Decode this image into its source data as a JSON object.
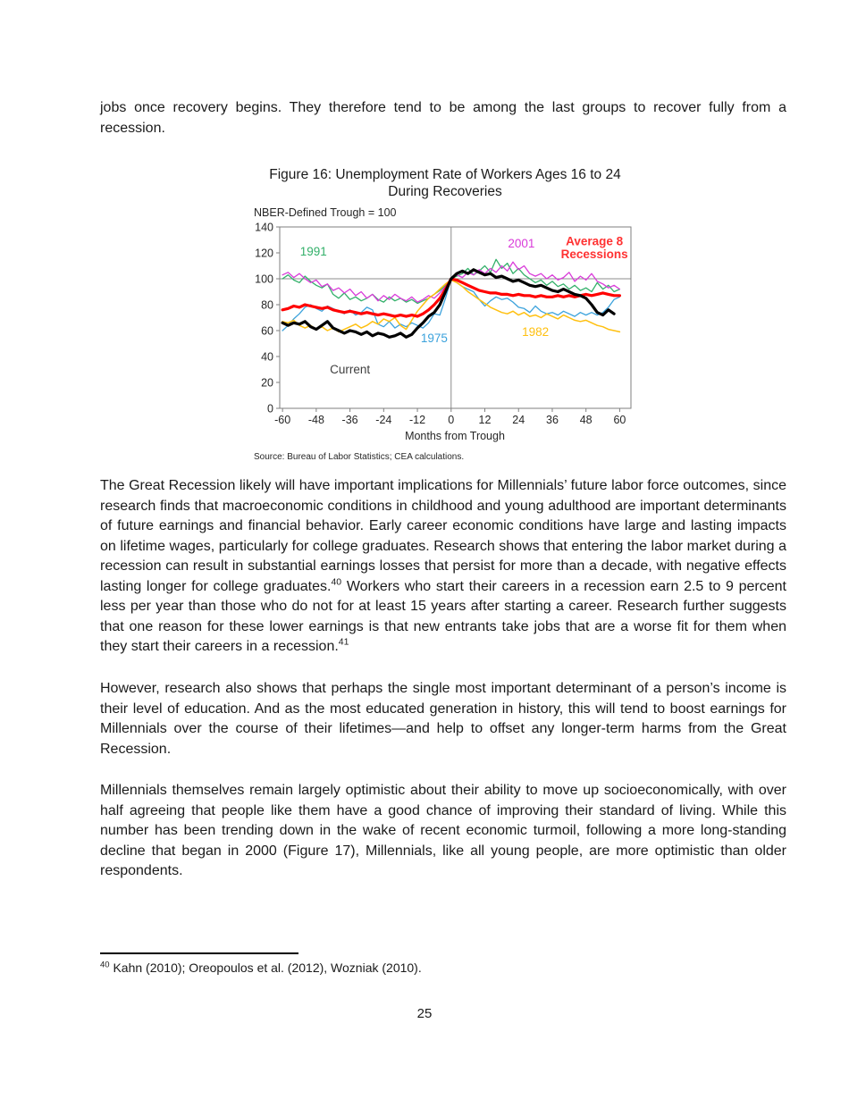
{
  "page": {
    "intro_text": "jobs once recovery begins. They therefore tend to be among the last groups to recover fully from a recession.",
    "paragraphs": [
      {
        "runs": [
          {
            "t": "The Great Recession likely will have important implications for Millennials’ future labor force outcomes, since research finds that macroeconomic conditions in childhood and young adulthood are important determinants of future earnings and financial behavior. Early career economic conditions have large and lasting impacts on lifetime wages, particularly for college graduates. Research shows that entering the labor market during a recession can result in substantial earnings losses that persist for more than a decade, with negative effects lasting longer for college graduates."
          },
          {
            "sup": "40"
          },
          {
            "t": " Workers who start their careers in a recession earn 2.5 to 9 percent less per year than those who do not for at least 15 years after starting a career. Research further suggests that one reason for these lower earnings is that new entrants take jobs that are a worse fit for them when they start their careers in a recession."
          },
          {
            "sup": "41"
          }
        ]
      },
      {
        "runs": [
          {
            "t": "However, research also shows that perhaps the single most important determinant of a person’s income is their level of education. And as the most educated generation in history, this will tend to boost earnings for Millennials over the course of their lifetimes—and help to offset any longer-term harms from the Great Recession."
          }
        ]
      },
      {
        "runs": [
          {
            "t": "Millennials themselves remain largely optimistic about their ability to move up socioeconomically, with over half agreeing that people like them have a good chance of improving their standard of living. While this number has been trending down in the wake of recent economic turmoil, following a more long-standing decline that began in 2000 (Figure 17), Millennials, like all young people, are more optimistic than older respondents."
          }
        ]
      }
    ],
    "footnote": {
      "sup": "40",
      "text": " Kahn (2010); Oreopoulos et al. (2012), Wozniak (2010)."
    },
    "page_number": "25"
  },
  "chart_data": {
    "type": "line",
    "title": "Figure 16: Unemployment Rate of Workers Ages 16 to 24",
    "title_line2": "During Recoveries",
    "subtitle": "NBER-Defined Trough = 100",
    "xlabel": "Months from Trough",
    "source": "Source: Bureau of Labor Statistics; CEA calculations.",
    "xlim": [
      -61,
      64
    ],
    "ylim": [
      0,
      140
    ],
    "x_ticks": [
      -60,
      -48,
      -36,
      -24,
      -12,
      0,
      12,
      24,
      36,
      48,
      60
    ],
    "y_ticks": [
      0,
      20,
      40,
      60,
      80,
      100,
      120,
      140
    ],
    "reference_lines": {
      "horizontal_value": 100,
      "vertical_month": 0
    },
    "x_start": -60,
    "x_step": 2,
    "legend_position": "in-plot-labels",
    "grid": "reference lines only",
    "series": [
      {
        "name": "1991",
        "color": "#33B06A",
        "width": 1.3,
        "values": [
          100,
          103,
          99,
          97,
          102,
          98,
          95,
          93,
          96,
          88,
          85,
          89,
          84,
          86,
          83,
          85,
          88,
          84,
          82,
          86,
          83,
          85,
          82,
          84,
          81,
          83,
          85,
          88,
          91,
          95,
          100,
          102,
          104,
          108,
          103,
          106,
          110,
          105,
          115,
          108,
          112,
          104,
          108,
          103,
          100,
          97,
          99,
          95,
          98,
          94,
          96,
          92,
          95,
          91,
          93,
          90,
          97,
          92,
          95,
          90,
          92
        ]
      },
      {
        "name": "2001",
        "color": "#D93BD9",
        "width": 1.3,
        "values": [
          103,
          105,
          101,
          104,
          100,
          97,
          99,
          94,
          96,
          91,
          93,
          89,
          92,
          87,
          90,
          85,
          88,
          83,
          87,
          84,
          88,
          85,
          83,
          86,
          82,
          84,
          87,
          85,
          89,
          94,
          100,
          103,
          101,
          105,
          103,
          107,
          104,
          108,
          105,
          110,
          106,
          113,
          107,
          110,
          104,
          102,
          104,
          100,
          103,
          99,
          101,
          105,
          98,
          102,
          99,
          104,
          98,
          96,
          93,
          95,
          92
        ]
      },
      {
        "name": "1975",
        "color": "#3BA2DC",
        "width": 1.3,
        "values": [
          60,
          64,
          69,
          73,
          78,
          80,
          77,
          75,
          79,
          77,
          75,
          73,
          76,
          72,
          74,
          78,
          76,
          65,
          63,
          67,
          62,
          65,
          63,
          66,
          64,
          62,
          66,
          73,
          72,
          85,
          100,
          97,
          94,
          92,
          90,
          84,
          79,
          83,
          86,
          84,
          85,
          82,
          78,
          77,
          74,
          79,
          75,
          73,
          74,
          72,
          75,
          73,
          71,
          74,
          72,
          74,
          72,
          74,
          78,
          84,
          86
        ]
      },
      {
        "name": "1982",
        "color": "#FFC010",
        "width": 1.5,
        "values": [
          67,
          66,
          68,
          64,
          62,
          64,
          61,
          63,
          60,
          62,
          59,
          61,
          63,
          65,
          62,
          64,
          67,
          65,
          69,
          67,
          70,
          64,
          61,
          68,
          75,
          80,
          85,
          88,
          92,
          96,
          99,
          97,
          94,
          90,
          87,
          84,
          81,
          78,
          76,
          74,
          73,
          75,
          72,
          74,
          71,
          72,
          70,
          73,
          71,
          69,
          72,
          70,
          68,
          67,
          68,
          66,
          64,
          63,
          61,
          60,
          59
        ]
      },
      {
        "name": "Average 8 Recessions",
        "color": "#FF0000",
        "width": 3.2,
        "values": [
          76,
          77,
          79,
          78,
          80,
          79,
          78,
          77,
          78,
          76,
          75,
          74,
          75,
          74,
          73,
          74,
          73,
          72,
          73,
          72,
          71,
          72,
          71,
          72,
          71,
          73,
          76,
          80,
          85,
          92,
          100,
          99,
          97,
          95,
          93,
          91,
          90,
          89,
          89,
          88,
          88,
          87,
          88,
          87,
          87,
          86,
          87,
          86,
          86,
          87,
          86,
          87,
          86,
          87,
          88,
          87,
          88,
          89,
          88,
          87,
          87
        ]
      },
      {
        "name": "Current",
        "color": "#000000",
        "width": 3.2,
        "values": [
          66,
          64,
          66,
          65,
          67,
          63,
          61,
          64,
          67,
          62,
          60,
          58,
          60,
          59,
          57,
          59,
          56,
          58,
          57,
          55,
          56,
          58,
          55,
          57,
          62,
          66,
          71,
          74,
          80,
          90,
          100,
          104,
          106,
          104,
          107,
          105,
          103,
          104,
          101,
          102,
          100,
          98,
          99,
          97,
          95,
          94,
          95,
          93,
          91,
          90,
          92,
          90,
          88,
          87,
          85,
          80,
          74,
          72,
          76,
          73
        ]
      }
    ],
    "labels": [
      {
        "text": "1991",
        "month": -49,
        "value": 118,
        "color": "#33B06A",
        "bold": false
      },
      {
        "text": "2001",
        "month": 25,
        "value": 124,
        "color": "#D93BD9",
        "bold": false
      },
      {
        "text": "Average 8",
        "month": 51,
        "value": 126,
        "color": "#FF3232",
        "bold": true
      },
      {
        "text": "Recessions",
        "month": 51,
        "value": 116,
        "color": "#FF3232",
        "bold": true
      },
      {
        "text": "1975",
        "month": -6,
        "value": 51,
        "color": "#3BA2DC",
        "bold": false
      },
      {
        "text": "1982",
        "month": 30,
        "value": 56,
        "color": "#FFC010",
        "bold": false
      },
      {
        "text": "Current",
        "month": -36,
        "value": 27,
        "color": "#3f3f3f",
        "bold": false
      }
    ]
  }
}
